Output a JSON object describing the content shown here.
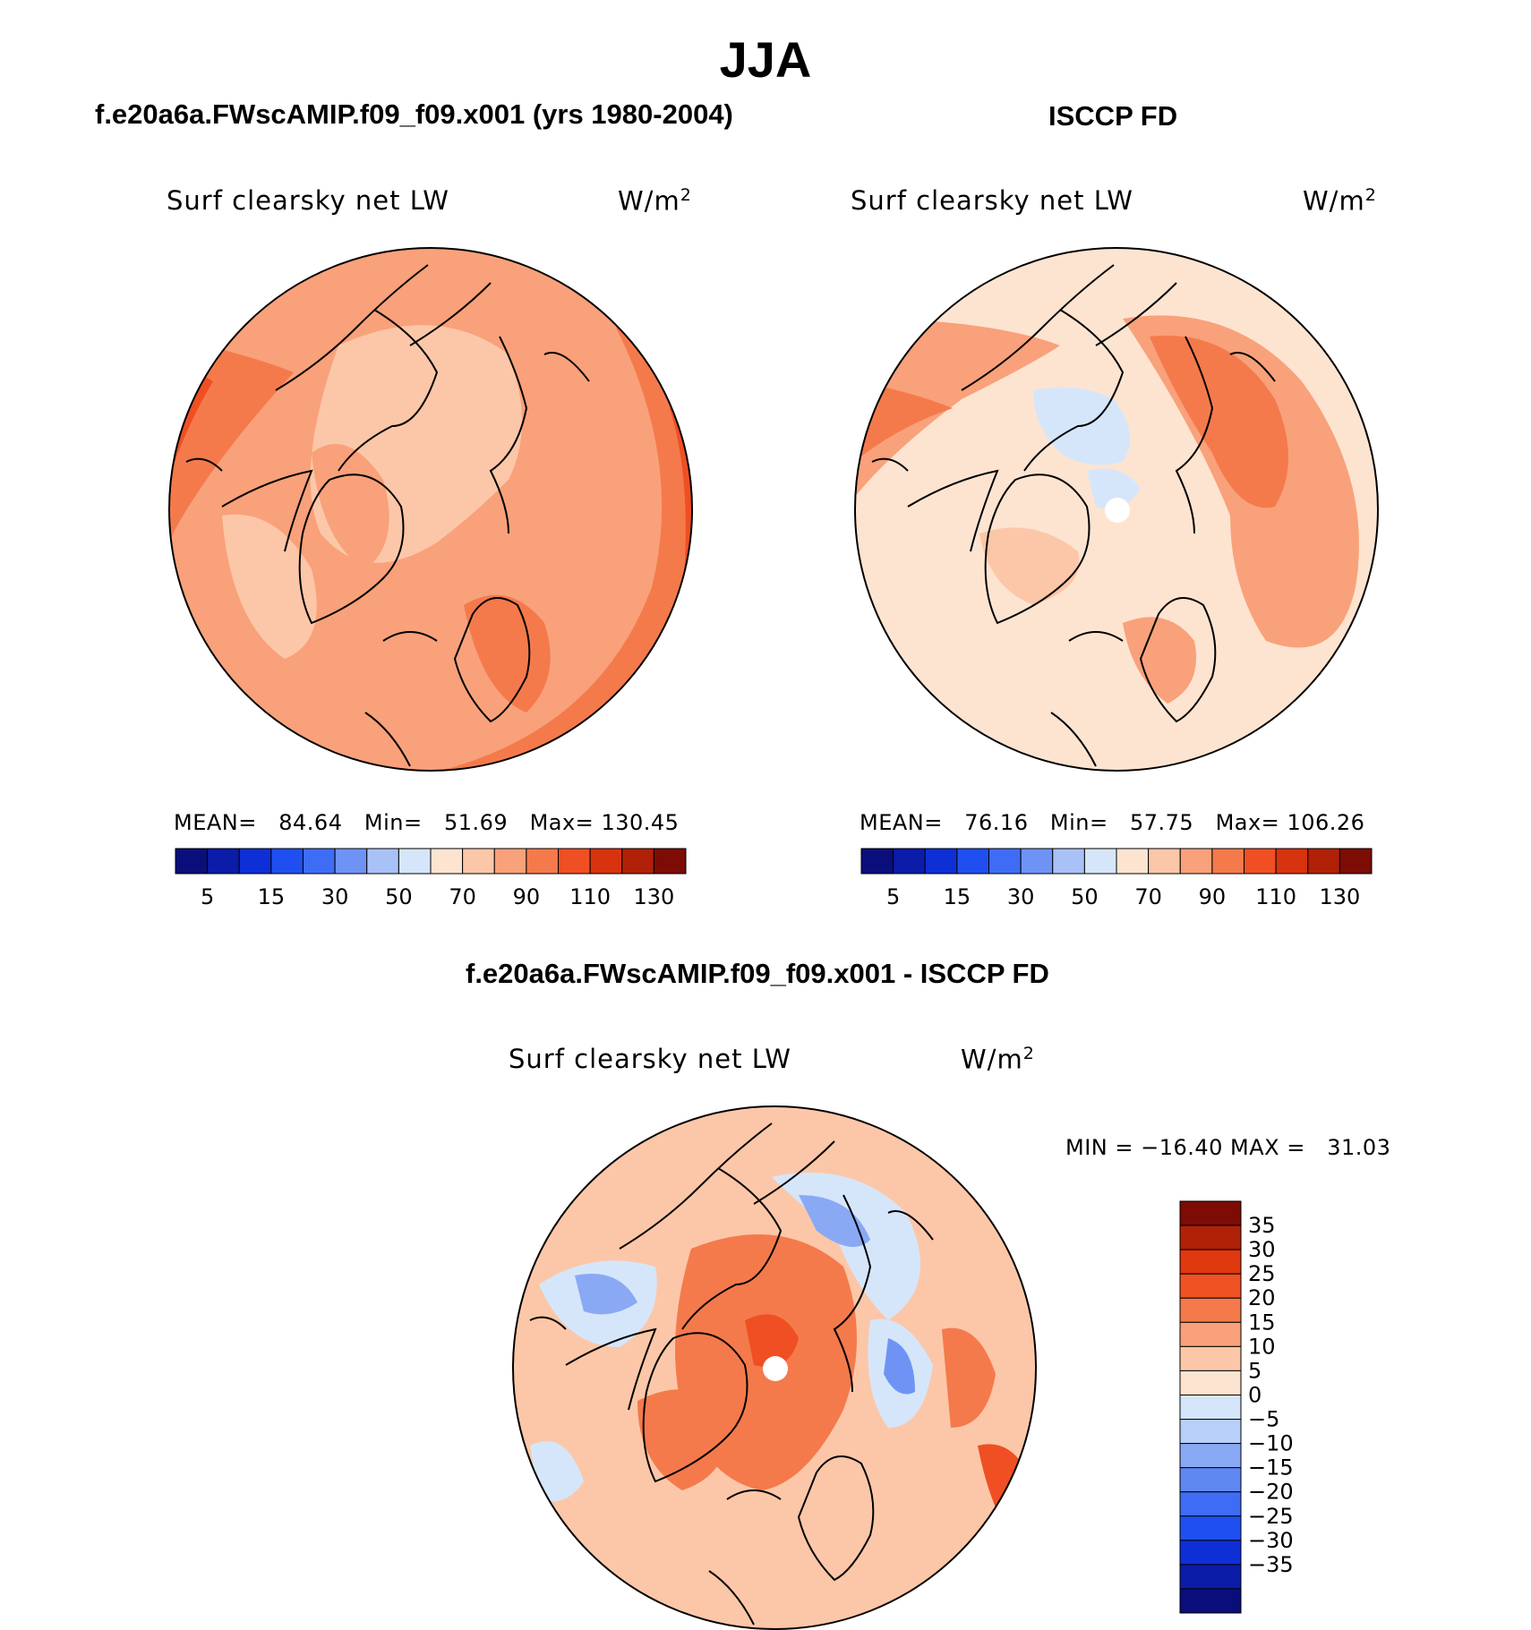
{
  "page": {
    "season_title": "JJA"
  },
  "panels": {
    "model": {
      "case_title": "f.e20a6a.FWscAMIP.f09_f09.x001 (yrs 1980-2004)",
      "plot_label": "Surf clearsky net LW",
      "units_base": "W/m",
      "units_exp": "2",
      "mean_label": "MEAN=",
      "mean_value": "84.64",
      "min_label": "Min=",
      "min_value": "51.69",
      "max_label": "Max=",
      "max_value": "130.45"
    },
    "obs": {
      "case_title": "ISCCP FD",
      "plot_label": "Surf clearsky net LW",
      "units_base": "W/m",
      "units_exp": "2",
      "mean_label": "MEAN=",
      "mean_value": "76.16",
      "min_label": "Min=",
      "min_value": "57.75",
      "max_label": "Max=",
      "max_value": "106.26"
    },
    "diff": {
      "case_title": "f.e20a6a.FWscAMIP.f09_f09.x001 - ISCCP FD",
      "plot_label": "Surf clearsky net LW",
      "units_base": "W/m",
      "units_exp": "2",
      "minmax_text": "MIN = −16.40 MAX =   31.03"
    }
  },
  "colors": {
    "abs_scale": [
      "#0a0e7a",
      "#0a1ca8",
      "#0e2fd6",
      "#1f4ff0",
      "#3f6cf5",
      "#6f93f5",
      "#a8c1f7",
      "#d6e6fa",
      "#fde4d1",
      "#fcc7a8",
      "#f9a17a",
      "#f47a4c",
      "#ef4f23",
      "#d8330f",
      "#b02108",
      "#7d0c05"
    ],
    "diff_scale": [
      "#7d0c05",
      "#b02108",
      "#e0380f",
      "#f05224",
      "#f47a4c",
      "#f9a17a",
      "#fcc7a8",
      "#fde4d1",
      "#d6e6fa",
      "#b8cff9",
      "#8aa9f4",
      "#5f87f0",
      "#3f6cf5",
      "#1f4ff0",
      "#0e2fd6",
      "#0a1ca8",
      "#0a0e7a"
    ],
    "ocean": "#fcc7a8"
  },
  "chart_data": [
    {
      "type": "heatmap",
      "title": "f.e20a6a.FWscAMIP.f09_f09.x001 (yrs 1980-2004)",
      "variable": "Surf clearsky net LW",
      "units": "W/m2",
      "projection": "north polar stereographic",
      "colorbar_levels": [
        5,
        15,
        30,
        50,
        70,
        90,
        110,
        130
      ],
      "colorbar_tick_labels": [
        "5",
        "15",
        "30",
        "50",
        "70",
        "90",
        "110",
        "130"
      ],
      "mean": 84.64,
      "min": 51.69,
      "max": 130.45
    },
    {
      "type": "heatmap",
      "title": "ISCCP FD",
      "variable": "Surf clearsky net LW",
      "units": "W/m2",
      "projection": "north polar stereographic",
      "colorbar_tick_labels": [
        "5",
        "15",
        "30",
        "50",
        "70",
        "90",
        "110",
        "130"
      ],
      "mean": 76.16,
      "min": 57.75,
      "max": 106.26
    },
    {
      "type": "heatmap",
      "title": "f.e20a6a.FWscAMIP.f09_f09.x001 - ISCCP FD",
      "variable": "Surf clearsky net LW",
      "units": "W/m2",
      "projection": "north polar stereographic",
      "colorbar_tick_labels": [
        "35",
        "30",
        "25",
        "20",
        "15",
        "10",
        "5",
        "0",
        "−5",
        "−10",
        "−15",
        "−20",
        "−25",
        "−30",
        "−35"
      ],
      "min": -16.4,
      "max": 31.03
    }
  ]
}
